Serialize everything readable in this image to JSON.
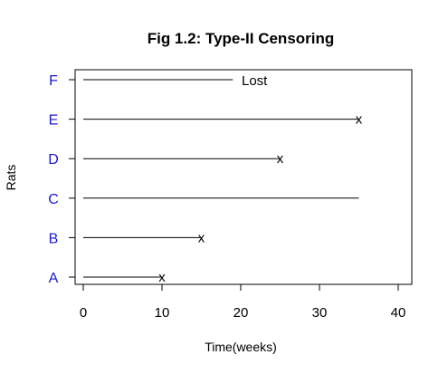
{
  "chart_data": {
    "type": "line",
    "title": "Fig 1.2: Type-II Censoring",
    "xlabel": "Time(weeks)",
    "ylabel": "Rats",
    "xlim": [
      -1,
      41
    ],
    "x_ticks": [
      0,
      10,
      20,
      30,
      40
    ],
    "categories": [
      "A",
      "B",
      "C",
      "D",
      "E",
      "F"
    ],
    "category_color": "#1a1acc",
    "series": [
      {
        "subject": "A",
        "start": 0,
        "end": 10,
        "marker": "x"
      },
      {
        "subject": "B",
        "start": 0,
        "end": 15,
        "marker": "x"
      },
      {
        "subject": "C",
        "start": 0,
        "end": 35,
        "marker": ""
      },
      {
        "subject": "D",
        "start": 0,
        "end": 25,
        "marker": "x"
      },
      {
        "subject": "E",
        "start": 0,
        "end": 35,
        "marker": "x"
      },
      {
        "subject": "F",
        "start": 0,
        "end": 19,
        "marker": ""
      }
    ],
    "annotations": [
      {
        "text": "Lost",
        "x": 20,
        "subject": "F"
      }
    ],
    "grid": false
  }
}
